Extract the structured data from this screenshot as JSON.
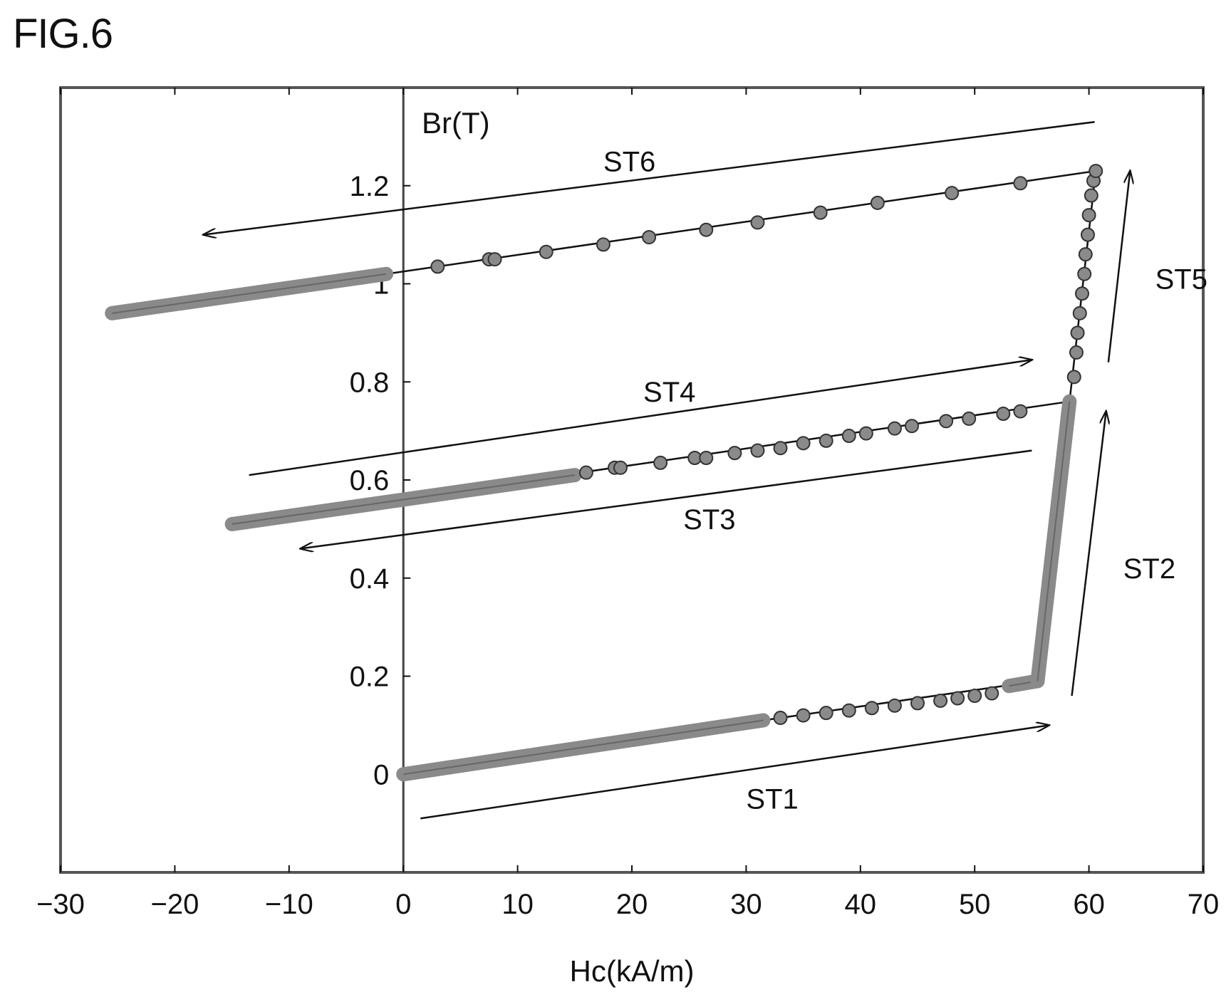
{
  "figure_label": "FIG.6",
  "colors": {
    "ink": "#111111",
    "marker": "#8a8a8a",
    "frame": "#555555"
  },
  "chart_data": {
    "type": "scatter",
    "title": "",
    "xlabel": "Hc(kA/m)",
    "ylabel": "Br(T)",
    "xlim": [
      -30,
      70
    ],
    "ylim": [
      -0.2,
      1.4
    ],
    "xticks": [
      -30,
      -20,
      -10,
      0,
      10,
      20,
      30,
      40,
      50,
      60,
      70
    ],
    "xtick_labels": [
      "−30",
      "−20",
      "−10",
      "0",
      "10",
      "20",
      "30",
      "40",
      "50",
      "60",
      "70"
    ],
    "yticks": [
      0,
      0.2,
      0.4,
      0.6,
      0.8,
      1.0,
      1.2
    ],
    "ytick_labels": [
      "0",
      "0.2",
      "0.4",
      "0.6",
      "0.8",
      "1",
      "1.2"
    ],
    "grid": false,
    "series": [
      {
        "dense_segments": [
          {
            "from": [
              0,
              0.0
            ],
            "to": [
              31.5,
              0.11
            ]
          },
          {
            "from": [
              53,
              0.18
            ],
            "to": [
              55.5,
              0.19
            ]
          },
          {
            "from": [
              55.5,
              0.19
            ],
            "to": [
              58.3,
              0.76
            ]
          },
          {
            "from": [
              -15,
              0.51
            ],
            "to": [
              15,
              0.61
            ]
          },
          {
            "from": [
              -25.5,
              0.94
            ],
            "to": [
              -1.5,
              1.02
            ]
          }
        ],
        "points": [
          [
            33,
            0.115
          ],
          [
            35,
            0.12
          ],
          [
            37,
            0.125
          ],
          [
            39,
            0.13
          ],
          [
            41,
            0.135
          ],
          [
            43,
            0.14
          ],
          [
            45,
            0.145
          ],
          [
            47,
            0.15
          ],
          [
            48.5,
            0.155
          ],
          [
            50,
            0.16
          ],
          [
            51.5,
            0.165
          ],
          [
            16,
            0.615
          ],
          [
            18.5,
            0.625
          ],
          [
            19,
            0.625
          ],
          [
            22.5,
            0.635
          ],
          [
            25.5,
            0.645
          ],
          [
            26.5,
            0.645
          ],
          [
            29,
            0.655
          ],
          [
            31,
            0.66
          ],
          [
            33,
            0.665
          ],
          [
            35,
            0.675
          ],
          [
            37,
            0.68
          ],
          [
            39,
            0.69
          ],
          [
            40.5,
            0.695
          ],
          [
            43,
            0.705
          ],
          [
            44.5,
            0.71
          ],
          [
            47.5,
            0.72
          ],
          [
            49.5,
            0.725
          ],
          [
            52.5,
            0.735
          ],
          [
            54,
            0.74
          ],
          [
            58.7,
            0.81
          ],
          [
            58.9,
            0.86
          ],
          [
            59.0,
            0.9
          ],
          [
            59.2,
            0.94
          ],
          [
            59.4,
            0.98
          ],
          [
            59.6,
            1.02
          ],
          [
            59.7,
            1.06
          ],
          [
            59.9,
            1.1
          ],
          [
            60.0,
            1.14
          ],
          [
            60.2,
            1.18
          ],
          [
            60.4,
            1.21
          ],
          [
            60.6,
            1.23
          ],
          [
            3,
            1.035
          ],
          [
            7.5,
            1.05
          ],
          [
            8,
            1.05
          ],
          [
            12.5,
            1.065
          ],
          [
            17.5,
            1.08
          ],
          [
            21.5,
            1.095
          ],
          [
            26.5,
            1.11
          ],
          [
            31,
            1.125
          ],
          [
            36.5,
            1.145
          ],
          [
            41.5,
            1.165
          ],
          [
            48,
            1.185
          ],
          [
            54,
            1.205
          ]
        ],
        "curve": [
          [
            0,
            0.0
          ],
          [
            31.5,
            0.11
          ],
          [
            55.5,
            0.19
          ],
          [
            58.3,
            0.76
          ],
          [
            60.6,
            1.23
          ],
          [
            -1.5,
            1.02
          ]
        ],
        "curve_branch": [
          [
            58.3,
            0.76
          ],
          [
            14,
            0.61
          ]
        ]
      }
    ],
    "annotations": [
      {
        "text": "ST1",
        "at": [
          30,
          -0.05
        ],
        "arrow_from": [
          1.5,
          -0.09
        ],
        "arrow_to": [
          56.5,
          0.1
        ]
      },
      {
        "text": "ST2",
        "at": [
          63,
          0.42
        ],
        "arrow_from": [
          58.5,
          0.16
        ],
        "arrow_to": [
          61.5,
          0.74
        ]
      },
      {
        "text": "ST3",
        "at": [
          24.5,
          0.52
        ],
        "arrow_from": [
          55,
          0.66
        ],
        "arrow_to": [
          -9,
          0.46
        ]
      },
      {
        "text": "ST4",
        "at": [
          21,
          0.78
        ],
        "arrow_from": [
          -13.5,
          0.61
        ],
        "arrow_to": [
          55,
          0.845
        ]
      },
      {
        "text": "ST5",
        "at": [
          65.8,
          1.01
        ],
        "arrow_from": [
          61.7,
          0.84
        ],
        "arrow_to": [
          63.6,
          1.23
        ]
      },
      {
        "text": "ST6",
        "at": [
          17.5,
          1.25
        ],
        "arrow_from": [
          60.5,
          1.33
        ],
        "arrow_to": [
          -17.5,
          1.1
        ]
      }
    ]
  }
}
